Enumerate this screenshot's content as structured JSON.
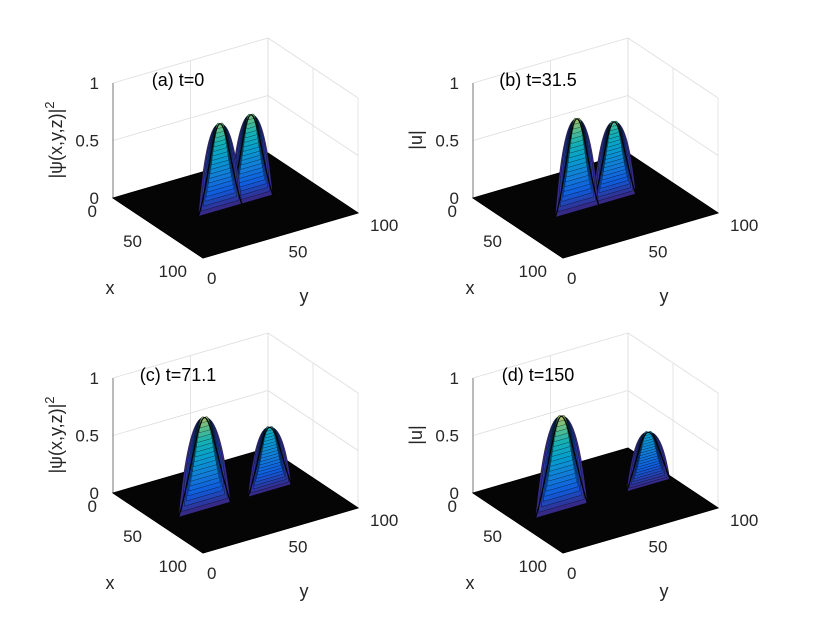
{
  "chart_data": [
    {
      "type": "surface",
      "title": "(a) t=0",
      "xlabel": "x",
      "ylabel": "y",
      "zlabel_text": "|ψ(x,y,z)|",
      "zlabel_sup": "2",
      "xlim": [
        0,
        100
      ],
      "ylim": [
        0,
        100
      ],
      "zlim": [
        0,
        1
      ],
      "x_ticks": [
        "0",
        "50",
        "100"
      ],
      "y_ticks": [
        "0",
        "50",
        "100"
      ],
      "z_ticks": [
        "0",
        "0.5",
        "1"
      ],
      "grid": true,
      "colormap": "parula",
      "peaks": [
        {
          "x": 50,
          "y": 40,
          "amplitude": 0.75,
          "width": 5
        },
        {
          "x": 50,
          "y": 60,
          "amplitude": 0.75,
          "width": 5
        }
      ]
    },
    {
      "type": "surface",
      "title": "(b) t=31.5",
      "xlabel": "x",
      "ylabel": "y",
      "zlabel_text": "|u|",
      "zlabel_sup": "",
      "xlim": [
        0,
        100
      ],
      "ylim": [
        0,
        100
      ],
      "zlim": [
        0,
        1
      ],
      "x_ticks": [
        "0",
        "50",
        "100"
      ],
      "y_ticks": [
        "0",
        "50",
        "100"
      ],
      "z_ticks": [
        "0",
        "0.5",
        "1"
      ],
      "grid": true,
      "colormap": "parula",
      "peaks": [
        {
          "x": 50,
          "y": 38,
          "amplitude": 0.8,
          "width": 5
        },
        {
          "x": 50,
          "y": 62,
          "amplitude": 0.68,
          "width": 5
        }
      ]
    },
    {
      "type": "surface",
      "title": "(c) t=71.1",
      "xlabel": "x",
      "ylabel": "y",
      "zlabel_text": "|ψ(x,y,z)|",
      "zlabel_sup": "2",
      "xlim": [
        0,
        100
      ],
      "ylim": [
        0,
        100
      ],
      "zlim": [
        0,
        1
      ],
      "x_ticks": [
        "0",
        "50",
        "100"
      ],
      "y_ticks": [
        "0",
        "50",
        "100"
      ],
      "z_ticks": [
        "0",
        "0.5",
        "1"
      ],
      "grid": true,
      "colormap": "parula",
      "peaks": [
        {
          "x": 50,
          "y": 30,
          "amplitude": 0.8,
          "width": 6
        },
        {
          "x": 50,
          "y": 72,
          "amplitude": 0.55,
          "width": 5
        }
      ]
    },
    {
      "type": "surface",
      "title": "(d) t=150",
      "xlabel": "x",
      "ylabel": "y",
      "zlabel_text": "|u|",
      "zlabel_sup": "",
      "xlim": [
        0,
        100
      ],
      "ylim": [
        0,
        100
      ],
      "zlim": [
        0,
        1
      ],
      "x_ticks": [
        "0",
        "50",
        "100"
      ],
      "y_ticks": [
        "0",
        "50",
        "100"
      ],
      "z_ticks": [
        "0",
        "0.5",
        "1"
      ],
      "grid": true,
      "colormap": "parula",
      "peaks": [
        {
          "x": 50,
          "y": 28,
          "amplitude": 0.82,
          "width": 6
        },
        {
          "x": 50,
          "y": 84,
          "amplitude": 0.46,
          "width": 5
        }
      ]
    }
  ]
}
